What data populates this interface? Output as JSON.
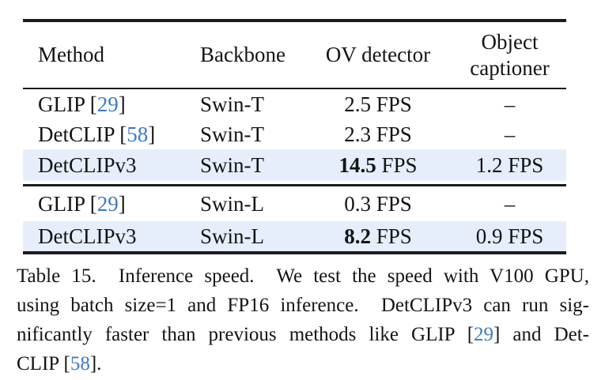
{
  "table": {
    "headers": {
      "method": "Method",
      "backbone": "Backbone",
      "ov_detector": "OV detector",
      "object_captioner": "Object\ncaptioner"
    },
    "rows": [
      {
        "method": "GLIP [",
        "cite": "29",
        "bracket": "]",
        "backbone": "Swin-T",
        "ov": "2.5 FPS",
        "captioner": "–"
      },
      {
        "method": "DetCLIP [",
        "cite": "58",
        "bracket": "]",
        "backbone": "Swin-T",
        "ov": "2.3 FPS",
        "captioner": "–"
      },
      {
        "method": "DetCLIPv3",
        "backbone": "Swin-T",
        "ov_bold": "14.5",
        "ov": " FPS",
        "captioner": "1.2 FPS",
        "highlight": true
      },
      {
        "method": "GLIP [",
        "cite": "29",
        "bracket": "]",
        "backbone": "Swin-L",
        "ov": "0.3 FPS",
        "captioner": "–"
      },
      {
        "method": "DetCLIPv3",
        "backbone": "Swin-L",
        "ov_bold": "8.2",
        "ov": " FPS",
        "captioner": "0.9 FPS",
        "highlight": true
      }
    ]
  },
  "caption": {
    "line1": "Table 15.  Inference speed.  We test the speed with V100 GPU,",
    "line2": "using batch size=1 and FP16 inference.  DetCLIPv3 can run sig-",
    "line3_pre": "nificantly faster than previous methods like GLIP [",
    "line3_cite": "29",
    "line3_post": "] and Det-",
    "line4_pre": "CLIP [",
    "line4_cite": "58",
    "line4_post": "]."
  },
  "colors": {
    "row_highlight": "#e5eefa",
    "citation_link": "#3e7bbf",
    "rule": "#1b1b1b"
  }
}
